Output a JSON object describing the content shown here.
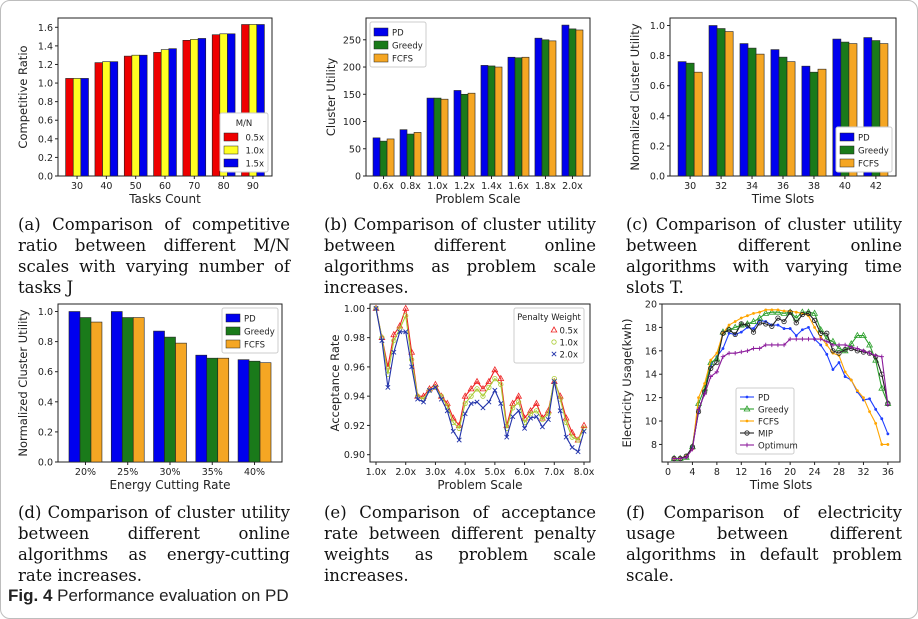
{
  "figure": {
    "label": "Fig. 4",
    "title": "Performance evaluation on PD"
  },
  "colors": {
    "blue": "#0000ee",
    "green": "#1a7a1a",
    "orange": "#f5a623",
    "red": "#ee0000",
    "yellow": "#ffff22",
    "line_blue": "#1f3fff",
    "line_green": "#2ca02c",
    "line_orange": "#ffa500",
    "line_black": "#222222",
    "line_purple": "#8b1a9b",
    "line_red": "#ee2222",
    "line_lightgreen": "#aacc33",
    "line_navy": "#2233aa"
  },
  "captions": {
    "a": "(a) Comparison of competitive ratio between different M/N scales with varying number of tasks J",
    "b": "(b) Comparison of cluster utility between different online algorithms as problem scale increases.",
    "c": "(c) Comparison of cluster utility between different online algorithms with varying time slots T.",
    "d": "(d) Comparison of cluster utility between different online algorithms as energy-cutting rate increases.",
    "e": "(e) Comparison of acceptance rate between different penalty weights as problem scale increases.",
    "f": "(f) Comparison of electricity usage between different algorithms in default problem scale."
  },
  "chart_data": [
    {
      "id": "a",
      "type": "bar",
      "xlabel": "Tasks Count",
      "ylabel": "Competitive Ratio",
      "categories": [
        "30",
        "40",
        "50",
        "60",
        "70",
        "80",
        "90"
      ],
      "ylim": [
        0,
        1.7
      ],
      "yticks": [
        "0.0",
        "0.2",
        "0.4",
        "0.6",
        "0.8",
        "1.0",
        "1.2",
        "1.4",
        "1.6"
      ],
      "legend_title": "M/N",
      "legend_position": "bottom-right",
      "series": [
        {
          "name": "0.5x",
          "color": "#ee0000",
          "values": [
            1.05,
            1.22,
            1.29,
            1.33,
            1.46,
            1.52,
            1.63
          ]
        },
        {
          "name": "1.0x",
          "color": "#ffff22",
          "values": [
            1.05,
            1.23,
            1.3,
            1.36,
            1.47,
            1.53,
            1.63
          ]
        },
        {
          "name": "1.5x",
          "color": "#0000ee",
          "values": [
            1.05,
            1.23,
            1.3,
            1.37,
            1.48,
            1.53,
            1.63
          ]
        }
      ]
    },
    {
      "id": "b",
      "type": "bar",
      "xlabel": "Problem Scale",
      "ylabel": "Cluster Utility",
      "categories": [
        "0.6x",
        "0.8x",
        "1.0x",
        "1.2x",
        "1.4x",
        "1.6x",
        "1.8x",
        "2.0x"
      ],
      "ylim": [
        0,
        290
      ],
      "yticks": [
        "0",
        "50",
        "100",
        "150",
        "200",
        "250"
      ],
      "legend_position": "top-left",
      "series": [
        {
          "name": "PD",
          "color": "#0000ee",
          "values": [
            70,
            85,
            143,
            157,
            203,
            218,
            253,
            277
          ]
        },
        {
          "name": "Greedy",
          "color": "#1a7a1a",
          "values": [
            64,
            77,
            143,
            150,
            202,
            217,
            250,
            270
          ]
        },
        {
          "name": "FCFS",
          "color": "#f5a623",
          "values": [
            68,
            80,
            141,
            152,
            200,
            218,
            248,
            268
          ]
        }
      ]
    },
    {
      "id": "c",
      "type": "bar",
      "xlabel": "Time Slots",
      "ylabel": "Normalized Cluster Utility",
      "categories": [
        "30",
        "32",
        "34",
        "36",
        "38",
        "40",
        "42"
      ],
      "ylim": [
        0,
        1.05
      ],
      "yticks": [
        "0.0",
        "0.2",
        "0.4",
        "0.6",
        "0.8",
        "1.0"
      ],
      "legend_position": "bottom-right",
      "series": [
        {
          "name": "PD",
          "color": "#0000ee",
          "values": [
            0.76,
            1.0,
            0.88,
            0.84,
            0.73,
            0.91,
            0.92
          ]
        },
        {
          "name": "Greedy",
          "color": "#1a7a1a",
          "values": [
            0.75,
            0.98,
            0.85,
            0.79,
            0.69,
            0.89,
            0.9
          ]
        },
        {
          "name": "FCFS",
          "color": "#f5a623",
          "values": [
            0.69,
            0.96,
            0.81,
            0.76,
            0.71,
            0.88,
            0.88
          ]
        }
      ]
    },
    {
      "id": "d",
      "type": "bar",
      "xlabel": "Energy Cutting Rate",
      "ylabel": "Normalized Cluster Utility",
      "categories": [
        "20%",
        "25%",
        "30%",
        "35%",
        "40%"
      ],
      "ylim": [
        0,
        1.05
      ],
      "yticks": [
        "0.0",
        "0.2",
        "0.4",
        "0.6",
        "0.8",
        "1.0"
      ],
      "legend_position": "top-right",
      "series": [
        {
          "name": "PD",
          "color": "#0000ee",
          "values": [
            1.0,
            1.0,
            0.87,
            0.71,
            0.68
          ]
        },
        {
          "name": "Greedy",
          "color": "#1a7a1a",
          "values": [
            0.96,
            0.96,
            0.83,
            0.69,
            0.67
          ]
        },
        {
          "name": "FCFS",
          "color": "#f5a623",
          "values": [
            0.93,
            0.96,
            0.79,
            0.69,
            0.66
          ]
        }
      ]
    },
    {
      "id": "e",
      "type": "line",
      "xlabel": "Problem Scale",
      "ylabel": "Acceptance Rate",
      "xlim": [
        1.0,
        8.0
      ],
      "xticks": [
        "1.0x",
        "2.0x",
        "3.0x",
        "4.0x",
        "5.0x",
        "6.0x",
        "7.0x",
        "8.0x"
      ],
      "ylim": [
        0.895,
        1.003
      ],
      "yticks": [
        "0.90",
        "0.92",
        "0.94",
        "0.96",
        "0.98",
        "1.00"
      ],
      "legend_title": "Penalty Weight",
      "legend_position": "top-right",
      "x": [
        1.0,
        1.2,
        1.4,
        1.6,
        1.8,
        2.0,
        2.2,
        2.4,
        2.6,
        2.8,
        3.0,
        3.2,
        3.4,
        3.6,
        3.8,
        4.0,
        4.2,
        4.4,
        4.6,
        4.8,
        5.0,
        5.2,
        5.4,
        5.6,
        5.8,
        6.0,
        6.2,
        6.4,
        6.6,
        6.8,
        7.0,
        7.2,
        7.4,
        7.6,
        7.8,
        8.0
      ],
      "series": [
        {
          "name": "0.5x",
          "color": "#ee2222",
          "marker": "triangle",
          "values": [
            1.0,
            0.98,
            0.96,
            0.982,
            0.988,
            1.0,
            0.97,
            0.94,
            0.94,
            0.945,
            0.948,
            0.94,
            0.935,
            0.925,
            0.92,
            0.94,
            0.945,
            0.95,
            0.945,
            0.95,
            0.958,
            0.952,
            0.92,
            0.935,
            0.94,
            0.925,
            0.93,
            0.935,
            0.925,
            0.93,
            0.95,
            0.94,
            0.925,
            0.915,
            0.91,
            0.92
          ]
        },
        {
          "name": "1.0x",
          "color": "#aacc33",
          "marker": "circle",
          "values": [
            1.0,
            0.98,
            0.955,
            0.978,
            0.986,
            0.995,
            0.965,
            0.94,
            0.938,
            0.944,
            0.946,
            0.94,
            0.933,
            0.922,
            0.918,
            0.935,
            0.94,
            0.945,
            0.94,
            0.946,
            0.952,
            0.948,
            0.918,
            0.932,
            0.936,
            0.922,
            0.928,
            0.93,
            0.924,
            0.928,
            0.952,
            0.938,
            0.922,
            0.912,
            0.91,
            0.918
          ]
        },
        {
          "name": "2.0x",
          "color": "#2233aa",
          "marker": "x",
          "values": [
            1.0,
            0.978,
            0.946,
            0.97,
            0.984,
            0.984,
            0.96,
            0.938,
            0.936,
            0.944,
            0.946,
            0.938,
            0.93,
            0.916,
            0.91,
            0.928,
            0.935,
            0.936,
            0.932,
            0.936,
            0.944,
            0.935,
            0.912,
            0.926,
            0.93,
            0.918,
            0.925,
            0.926,
            0.919,
            0.924,
            0.95,
            0.93,
            0.912,
            0.905,
            0.902,
            0.916
          ]
        }
      ]
    },
    {
      "id": "f",
      "type": "line",
      "xlabel": "Time Slots",
      "ylabel": "Electricity Usage(kwh)",
      "xlim": [
        0,
        37
      ],
      "xticks": [
        "0",
        "4",
        "8",
        "12",
        "16",
        "20",
        "24",
        "28",
        "32",
        "36"
      ],
      "ylim": [
        6.5,
        20
      ],
      "yticks": [
        "8",
        "10",
        "12",
        "14",
        "16",
        "18",
        "20"
      ],
      "legend_position": "bottom-left",
      "x": [
        1,
        2,
        3,
        4,
        5,
        6,
        7,
        8,
        9,
        10,
        11,
        12,
        13,
        14,
        15,
        16,
        17,
        18,
        19,
        20,
        21,
        22,
        23,
        24,
        25,
        26,
        27,
        28,
        29,
        30,
        31,
        32,
        33,
        34,
        35,
        36
      ],
      "series": [
        {
          "name": "PD",
          "color": "#1f3fff",
          "marker": "dot",
          "values": [
            6.8,
            6.8,
            6.9,
            7.8,
            10.8,
            12.5,
            14.8,
            15.5,
            16.2,
            17.5,
            17.4,
            17.6,
            18.0,
            17.9,
            18.6,
            18.5,
            18.2,
            18.2,
            17.9,
            17.9,
            17.3,
            17.8,
            18.0,
            17.0,
            16.5,
            15.7,
            14.4,
            15.0,
            13.8,
            13.5,
            12.5,
            11.8,
            11.9,
            11.0,
            10.2,
            8.9
          ]
        },
        {
          "name": "Greedy",
          "color": "#2ca02c",
          "marker": "triangle",
          "values": [
            6.8,
            6.8,
            6.9,
            7.8,
            11.5,
            12.8,
            15.0,
            15.3,
            17.6,
            17.8,
            18.0,
            18.2,
            18.3,
            18.5,
            18.8,
            19.2,
            19.3,
            19.3,
            19.2,
            19.3,
            18.8,
            19.3,
            19.3,
            19.2,
            17.8,
            17.0,
            16.8,
            16.2,
            16.0,
            16.6,
            17.3,
            17.3,
            16.5,
            15.2,
            12.8,
            11.5
          ]
        },
        {
          "name": "FCFS",
          "color": "#ffa500",
          "marker": "dot",
          "values": [
            6.8,
            6.8,
            7.0,
            7.6,
            12.0,
            13.2,
            15.2,
            15.8,
            17.5,
            18.2,
            18.5,
            18.8,
            19.0,
            19.2,
            19.3,
            19.5,
            19.5,
            19.5,
            19.4,
            19.4,
            19.3,
            19.2,
            19.0,
            18.0,
            17.2,
            16.5,
            15.8,
            15.6,
            14.2,
            13.5,
            12.6,
            12.0,
            10.8,
            9.8,
            8.0,
            8.0
          ]
        },
        {
          "name": "MIP",
          "color": "#222222",
          "marker": "circle",
          "values": [
            6.8,
            6.8,
            7.0,
            7.8,
            10.8,
            12.5,
            14.5,
            15.0,
            17.5,
            17.8,
            17.4,
            18.3,
            18.2,
            17.6,
            18.4,
            18.3,
            18.1,
            18.8,
            18.5,
            19.3,
            18.4,
            19.1,
            19.2,
            18.6,
            17.5,
            17.5,
            16.0,
            15.8,
            16.1,
            16.2,
            16.0,
            15.9,
            15.8,
            15.5,
            14.0,
            11.5
          ]
        },
        {
          "name": "Optimum",
          "color": "#8b1a9b",
          "marker": "plus",
          "values": [
            6.8,
            6.8,
            6.9,
            7.6,
            11.0,
            12.3,
            13.8,
            14.2,
            15.5,
            15.8,
            15.8,
            15.9,
            16.0,
            16.2,
            16.2,
            16.5,
            16.5,
            16.5,
            16.5,
            17.0,
            17.0,
            17.0,
            17.0,
            17.0,
            17.0,
            16.8,
            16.5,
            16.5,
            16.5,
            16.3,
            16.2,
            16.0,
            15.8,
            15.6,
            15.5,
            11.4
          ]
        }
      ]
    }
  ]
}
